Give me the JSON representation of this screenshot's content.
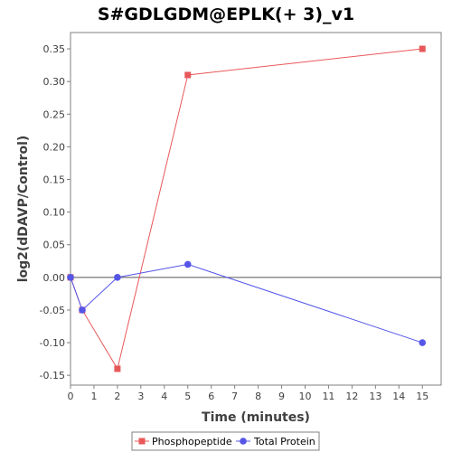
{
  "chart_data": {
    "type": "line",
    "title": "S#GDLGDM@EPLK(+ 3)_v1",
    "xlabel": "Time (minutes)",
    "ylabel": "log2(dDAVP/Control)",
    "xlim": [
      0,
      15.8
    ],
    "ylim": [
      -0.165,
      0.375
    ],
    "x_ticks": [
      0,
      1,
      2,
      3,
      4,
      5,
      6,
      7,
      8,
      9,
      10,
      11,
      12,
      13,
      14,
      15
    ],
    "y_ticks": [
      -0.15,
      -0.1,
      -0.05,
      0.0,
      0.05,
      0.1,
      0.15,
      0.2,
      0.25,
      0.3,
      0.35
    ],
    "y_tick_labels": [
      "-0.15",
      "-0.10",
      "-0.05",
      "0.00",
      "0.05",
      "0.10",
      "0.15",
      "0.20",
      "0.25",
      "0.30",
      "0.35"
    ],
    "zero_line": true,
    "grid": false,
    "legend_position": "bottom",
    "series": [
      {
        "name": "Phosphopeptide",
        "color": "#e8585a",
        "marker": "square",
        "points": [
          [
            0,
            0.0
          ],
          [
            0.5,
            -0.05
          ],
          [
            2,
            -0.14
          ],
          [
            5,
            0.31
          ],
          [
            15,
            0.35
          ]
        ]
      },
      {
        "name": "Total Protein",
        "color": "#5555e8",
        "marker": "circle",
        "points": [
          [
            0,
            0.0
          ],
          [
            0.5,
            -0.05
          ],
          [
            2,
            0.0
          ],
          [
            5,
            0.02
          ],
          [
            15,
            -0.1
          ]
        ]
      }
    ]
  }
}
